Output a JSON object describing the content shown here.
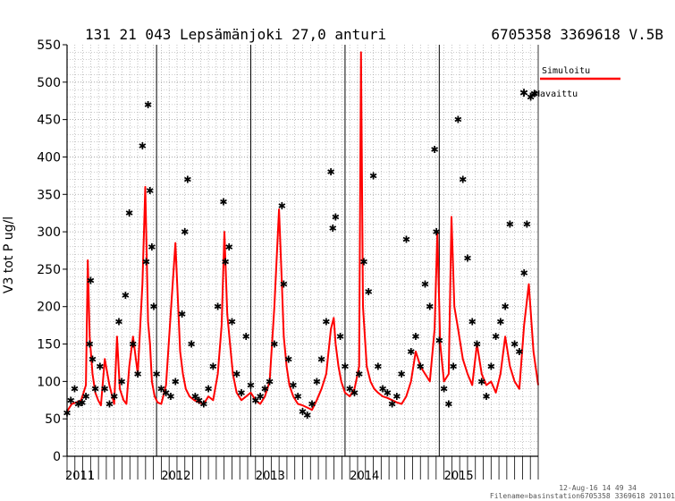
{
  "chart_data": {
    "type": "line",
    "title": "131 21 043 Lepsämänjoki 27,0 anturi",
    "title_right": "6705358 3369618 V.5B",
    "ylabel": "V3 tot P ug/l",
    "xlabel": "",
    "ylim": [
      0,
      550
    ],
    "yticks": [
      "0",
      "50",
      "100",
      "150",
      "200",
      "250",
      "300",
      "350",
      "400",
      "450",
      "500",
      "550"
    ],
    "xlim": [
      2011.0,
      2016.0
    ],
    "year_labels": [
      "2011",
      "2012",
      "2013",
      "2014",
      "2015"
    ],
    "year_lines": [
      2011.95,
      2012.95,
      2013.95,
      2014.95
    ],
    "grid": true,
    "legend_position": "top-right",
    "colors": {
      "simulated": "#ff0000",
      "observed": "#000000",
      "grid": "#999999"
    },
    "series": [
      {
        "name": "Simuloitu",
        "kind": "line",
        "x": [
          2011.0,
          2011.05,
          2011.1,
          2011.15,
          2011.2,
          2011.22,
          2011.24,
          2011.27,
          2011.3,
          2011.33,
          2011.36,
          2011.4,
          2011.45,
          2011.5,
          2011.53,
          2011.56,
          2011.6,
          2011.63,
          2011.66,
          2011.7,
          2011.75,
          2011.8,
          2011.83,
          2011.86,
          2011.88,
          2011.9,
          2011.93,
          2011.96,
          2012.0,
          2012.05,
          2012.1,
          2012.15,
          2012.2,
          2012.23,
          2012.26,
          2012.3,
          2012.35,
          2012.4,
          2012.45,
          2012.5,
          2012.55,
          2012.6,
          2012.64,
          2012.67,
          2012.7,
          2012.73,
          2012.76,
          2012.8,
          2012.85,
          2012.9,
          2012.95,
          2013.0,
          2013.05,
          2013.1,
          2013.15,
          2013.2,
          2013.25,
          2013.28,
          2013.3,
          2013.33,
          2013.36,
          2013.4,
          2013.45,
          2013.5,
          2013.55,
          2013.6,
          2013.65,
          2013.7,
          2013.75,
          2013.8,
          2013.83,
          2013.85,
          2013.88,
          2013.91,
          2013.95,
          2014.0,
          2014.05,
          2014.1,
          2014.12,
          2014.14,
          2014.18,
          2014.22,
          2014.26,
          2014.3,
          2014.35,
          2014.4,
          2014.45,
          2014.5,
          2014.55,
          2014.6,
          2014.65,
          2014.7,
          2014.75,
          2014.8,
          2014.85,
          2014.9,
          2014.93,
          2014.96,
          2015.0,
          2015.05,
          2015.08,
          2015.11,
          2015.15,
          2015.2,
          2015.25,
          2015.3,
          2015.35,
          2015.4,
          2015.45,
          2015.5,
          2015.55,
          2015.6,
          2015.65,
          2015.7,
          2015.75,
          2015.8,
          2015.85,
          2015.9,
          2015.95,
          2016.0
        ],
        "y": [
          60,
          70,
          72,
          75,
          95,
          262,
          160,
          110,
          85,
          75,
          68,
          130,
          95,
          70,
          160,
          90,
          75,
          70,
          120,
          160,
          110,
          230,
          360,
          180,
          150,
          100,
          80,
          72,
          70,
          95,
          190,
          285,
          140,
          110,
          90,
          80,
          75,
          72,
          70,
          80,
          75,
          110,
          175,
          300,
          190,
          150,
          110,
          85,
          75,
          80,
          85,
          75,
          70,
          80,
          100,
          200,
          330,
          230,
          160,
          120,
          95,
          80,
          70,
          68,
          65,
          62,
          75,
          90,
          110,
          170,
          185,
          150,
          120,
          100,
          85,
          80,
          90,
          120,
          540,
          200,
          120,
          100,
          90,
          85,
          80,
          78,
          75,
          72,
          70,
          80,
          100,
          140,
          120,
          110,
          100,
          170,
          300,
          150,
          100,
          110,
          320,
          200,
          170,
          130,
          110,
          95,
          150,
          110,
          95,
          100,
          85,
          110,
          160,
          120,
          100,
          90,
          175,
          230,
          140,
          95
        ]
      },
      {
        "name": "=Havaittu",
        "kind": "markers",
        "x": [
          2011.0,
          2011.04,
          2011.08,
          2011.12,
          2011.16,
          2011.2,
          2011.24,
          2011.25,
          2011.27,
          2011.3,
          2011.35,
          2011.4,
          2011.45,
          2011.5,
          2011.55,
          2011.58,
          2011.62,
          2011.66,
          2011.7,
          2011.75,
          2011.8,
          2011.84,
          2011.86,
          2011.88,
          2011.9,
          2011.92,
          2011.95,
          2012.0,
          2012.05,
          2012.1,
          2012.15,
          2012.22,
          2012.25,
          2012.28,
          2012.32,
          2012.36,
          2012.4,
          2012.45,
          2012.5,
          2012.55,
          2012.6,
          2012.66,
          2012.68,
          2012.72,
          2012.75,
          2012.8,
          2012.85,
          2012.9,
          2012.95,
          2013.0,
          2013.05,
          2013.1,
          2013.15,
          2013.2,
          2013.28,
          2013.3,
          2013.35,
          2013.4,
          2013.45,
          2013.5,
          2013.55,
          2013.6,
          2013.65,
          2013.7,
          2013.75,
          2013.8,
          2013.82,
          2013.85,
          2013.9,
          2013.95,
          2014.0,
          2014.05,
          2014.1,
          2014.15,
          2014.2,
          2014.25,
          2014.3,
          2014.35,
          2014.4,
          2014.45,
          2014.5,
          2014.55,
          2014.6,
          2014.65,
          2014.7,
          2014.75,
          2014.8,
          2014.85,
          2014.9,
          2014.92,
          2014.95,
          2015.0,
          2015.05,
          2015.1,
          2015.15,
          2015.2,
          2015.25,
          2015.3,
          2015.35,
          2015.4,
          2015.45,
          2015.5,
          2015.55,
          2015.6,
          2015.65,
          2015.7,
          2015.75,
          2015.8,
          2015.85,
          2015.88,
          2015.92,
          2015.96
        ],
        "y": [
          58,
          75,
          90,
          70,
          72,
          80,
          150,
          235,
          130,
          90,
          120,
          90,
          70,
          80,
          180,
          100,
          215,
          325,
          150,
          110,
          415,
          260,
          470,
          355,
          280,
          200,
          110,
          90,
          85,
          80,
          100,
          190,
          300,
          370,
          150,
          80,
          75,
          70,
          90,
          120,
          200,
          340,
          260,
          280,
          180,
          110,
          85,
          160,
          95,
          75,
          80,
          90,
          100,
          150,
          335,
          230,
          130,
          95,
          80,
          60,
          55,
          70,
          100,
          130,
          180,
          380,
          305,
          320,
          160,
          120,
          90,
          85,
          110,
          260,
          220,
          375,
          120,
          90,
          85,
          70,
          80,
          110,
          290,
          140,
          160,
          120,
          230,
          200,
          410,
          300,
          155,
          90,
          70,
          120,
          450,
          370,
          265,
          180,
          150,
          100,
          80,
          120,
          160,
          180,
          200,
          310,
          150,
          140,
          245,
          310,
          480,
          485
        ]
      }
    ],
    "footer_date": "12-Aug-16 14 49 34",
    "footer_file": "Filename=basinstation6705358 3369618 201101"
  }
}
